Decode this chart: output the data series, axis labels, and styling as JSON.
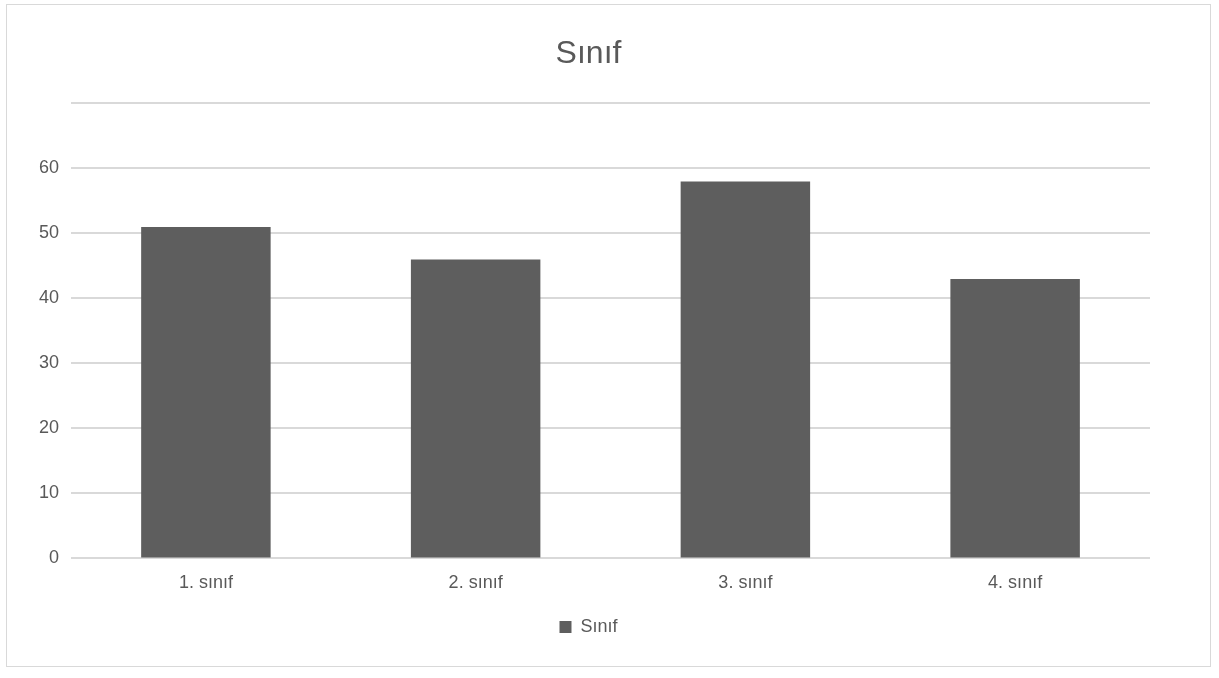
{
  "chart_data": {
    "type": "bar",
    "title": "Sınıf",
    "categories": [
      "1. sınıf",
      "2. sınıf",
      "3. sınıf",
      "4. sınıf"
    ],
    "series": [
      {
        "name": "Sınıf",
        "color": "#5e5e5e",
        "values": [
          51,
          46,
          58,
          43
        ]
      }
    ],
    "ylim": [
      0,
      70
    ],
    "yticks": [
      0,
      10,
      20,
      30,
      40,
      50,
      60,
      {
        "value": 70,
        "label": null
      }
    ],
    "grid": "y",
    "legend": "bottom"
  }
}
